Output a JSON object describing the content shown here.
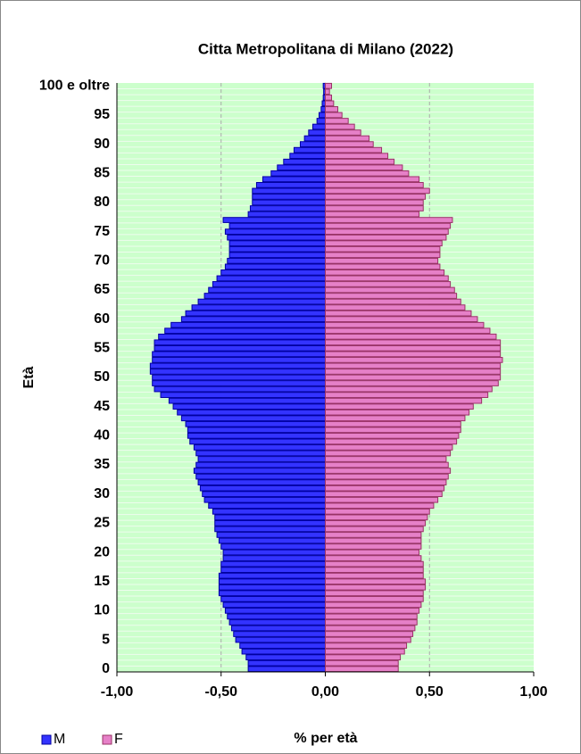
{
  "chart_data": {
    "type": "pyramid",
    "title": "Citta Metropolitana di Milano (2022)",
    "xlabel": "% per età",
    "ylabel": "Età",
    "categories": [
      "0",
      null,
      null,
      null,
      null,
      "5",
      null,
      null,
      null,
      null,
      "10",
      null,
      null,
      null,
      null,
      "15",
      null,
      null,
      null,
      null,
      "20",
      null,
      null,
      null,
      null,
      "25",
      null,
      null,
      null,
      null,
      "30",
      null,
      null,
      null,
      null,
      "35",
      null,
      null,
      null,
      null,
      "40",
      null,
      null,
      null,
      null,
      "45",
      null,
      null,
      null,
      null,
      "50",
      null,
      null,
      null,
      null,
      "55",
      null,
      null,
      null,
      null,
      "60",
      null,
      null,
      null,
      null,
      "65",
      null,
      null,
      null,
      null,
      "70",
      null,
      null,
      null,
      null,
      "75",
      null,
      null,
      null,
      null,
      "80",
      null,
      null,
      null,
      null,
      "85",
      null,
      null,
      null,
      null,
      "90",
      null,
      null,
      null,
      null,
      "95",
      null,
      null,
      null,
      null,
      "100 e oltre"
    ],
    "series": [
      {
        "name": "M",
        "color": "#3333ff",
        "edge": "#0000a0",
        "values": [
          -0.37,
          -0.37,
          -0.38,
          -0.4,
          -0.41,
          -0.43,
          -0.44,
          -0.45,
          -0.46,
          -0.47,
          -0.48,
          -0.49,
          -0.5,
          -0.51,
          -0.51,
          -0.51,
          -0.51,
          -0.5,
          -0.5,
          -0.49,
          -0.49,
          -0.5,
          -0.51,
          -0.52,
          -0.53,
          -0.53,
          -0.53,
          -0.54,
          -0.56,
          -0.58,
          -0.59,
          -0.6,
          -0.61,
          -0.62,
          -0.63,
          -0.62,
          -0.61,
          -0.62,
          -0.63,
          -0.65,
          -0.66,
          -0.66,
          -0.67,
          -0.69,
          -0.71,
          -0.73,
          -0.75,
          -0.79,
          -0.82,
          -0.83,
          -0.83,
          -0.84,
          -0.84,
          -0.83,
          -0.83,
          -0.82,
          -0.82,
          -0.8,
          -0.77,
          -0.74,
          -0.69,
          -0.67,
          -0.64,
          -0.61,
          -0.58,
          -0.56,
          -0.54,
          -0.52,
          -0.5,
          -0.48,
          -0.47,
          -0.46,
          -0.46,
          -0.46,
          -0.47,
          -0.48,
          -0.46,
          -0.49,
          -0.37,
          -0.36,
          -0.35,
          -0.35,
          -0.35,
          -0.33,
          -0.3,
          -0.26,
          -0.23,
          -0.2,
          -0.17,
          -0.15,
          -0.12,
          -0.1,
          -0.08,
          -0.06,
          -0.04,
          -0.03,
          -0.02,
          -0.015,
          -0.01,
          -0.008,
          -0.01
        ]
      },
      {
        "name": "F",
        "color": "#e680c8",
        "edge": "#993366",
        "values": [
          0.35,
          0.35,
          0.36,
          0.38,
          0.39,
          0.41,
          0.42,
          0.43,
          0.44,
          0.44,
          0.45,
          0.46,
          0.47,
          0.47,
          0.48,
          0.48,
          0.47,
          0.47,
          0.47,
          0.46,
          0.45,
          0.46,
          0.46,
          0.46,
          0.47,
          0.48,
          0.49,
          0.5,
          0.52,
          0.54,
          0.56,
          0.57,
          0.58,
          0.59,
          0.6,
          0.59,
          0.58,
          0.6,
          0.61,
          0.63,
          0.64,
          0.65,
          0.65,
          0.67,
          0.69,
          0.71,
          0.75,
          0.78,
          0.8,
          0.83,
          0.84,
          0.84,
          0.84,
          0.85,
          0.84,
          0.84,
          0.84,
          0.82,
          0.79,
          0.76,
          0.73,
          0.7,
          0.67,
          0.65,
          0.63,
          0.62,
          0.6,
          0.59,
          0.57,
          0.55,
          0.54,
          0.55,
          0.55,
          0.56,
          0.58,
          0.59,
          0.6,
          0.61,
          0.45,
          0.47,
          0.47,
          0.48,
          0.5,
          0.47,
          0.45,
          0.4,
          0.37,
          0.33,
          0.3,
          0.27,
          0.23,
          0.21,
          0.17,
          0.14,
          0.11,
          0.08,
          0.06,
          0.04,
          0.03,
          0.02,
          0.03
        ]
      }
    ],
    "xlim": [
      -1,
      1
    ],
    "xticks": [
      {
        "value": -1,
        "label": "-1,00"
      },
      {
        "value": -0.5,
        "label": "-0,50"
      },
      {
        "value": 0,
        "label": "0,00"
      },
      {
        "value": 0.5,
        "label": "0,50"
      },
      {
        "value": 1,
        "label": "1,00"
      }
    ],
    "grid": true,
    "legend": "bottom-left",
    "background": "#ccffcc"
  }
}
